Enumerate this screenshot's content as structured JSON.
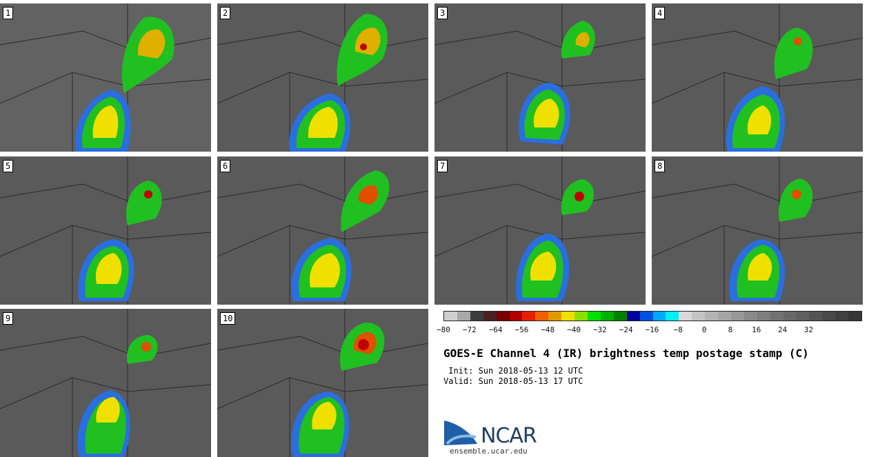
{
  "panels": [
    {
      "label": "1"
    },
    {
      "label": "2"
    },
    {
      "label": "3"
    },
    {
      "label": "4"
    },
    {
      "label": "5"
    },
    {
      "label": "6"
    },
    {
      "label": "7"
    },
    {
      "label": "8"
    },
    {
      "label": "9"
    },
    {
      "label": "10"
    }
  ],
  "colorbar": {
    "colors": [
      "#cfcfcf",
      "#a8a8a8",
      "#3c3c3c",
      "#4a2020",
      "#7a0000",
      "#b00000",
      "#e52000",
      "#f06000",
      "#e09a00",
      "#f0e000",
      "#8ae000",
      "#00e000",
      "#00b000",
      "#008000",
      "#0000a0",
      "#0050e0",
      "#00a8ff",
      "#00f0f0",
      "#d8d8d8",
      "#c4c4c4",
      "#b4b4b4",
      "#a6a6a6",
      "#989898",
      "#8a8a8a",
      "#7e7e7e",
      "#727272",
      "#686868",
      "#5e5e5e",
      "#545454",
      "#4a4a4a",
      "#404040",
      "#363636"
    ],
    "ticks": [
      "−80",
      "−72",
      "−64",
      "−56",
      "−48",
      "−40",
      "−32",
      "−24",
      "−16",
      "−8",
      "0",
      "8",
      "16",
      "24",
      "32"
    ]
  },
  "title": "GOES-E Channel 4 (IR) brightness temp postage stamp (C)",
  "init": " Init: Sun 2018-05-13 12 UTC",
  "valid": "Valid: Sun 2018-05-13 17 UTC",
  "logo": {
    "text": "NCAR",
    "site": "ensemble.ucar.edu"
  }
}
